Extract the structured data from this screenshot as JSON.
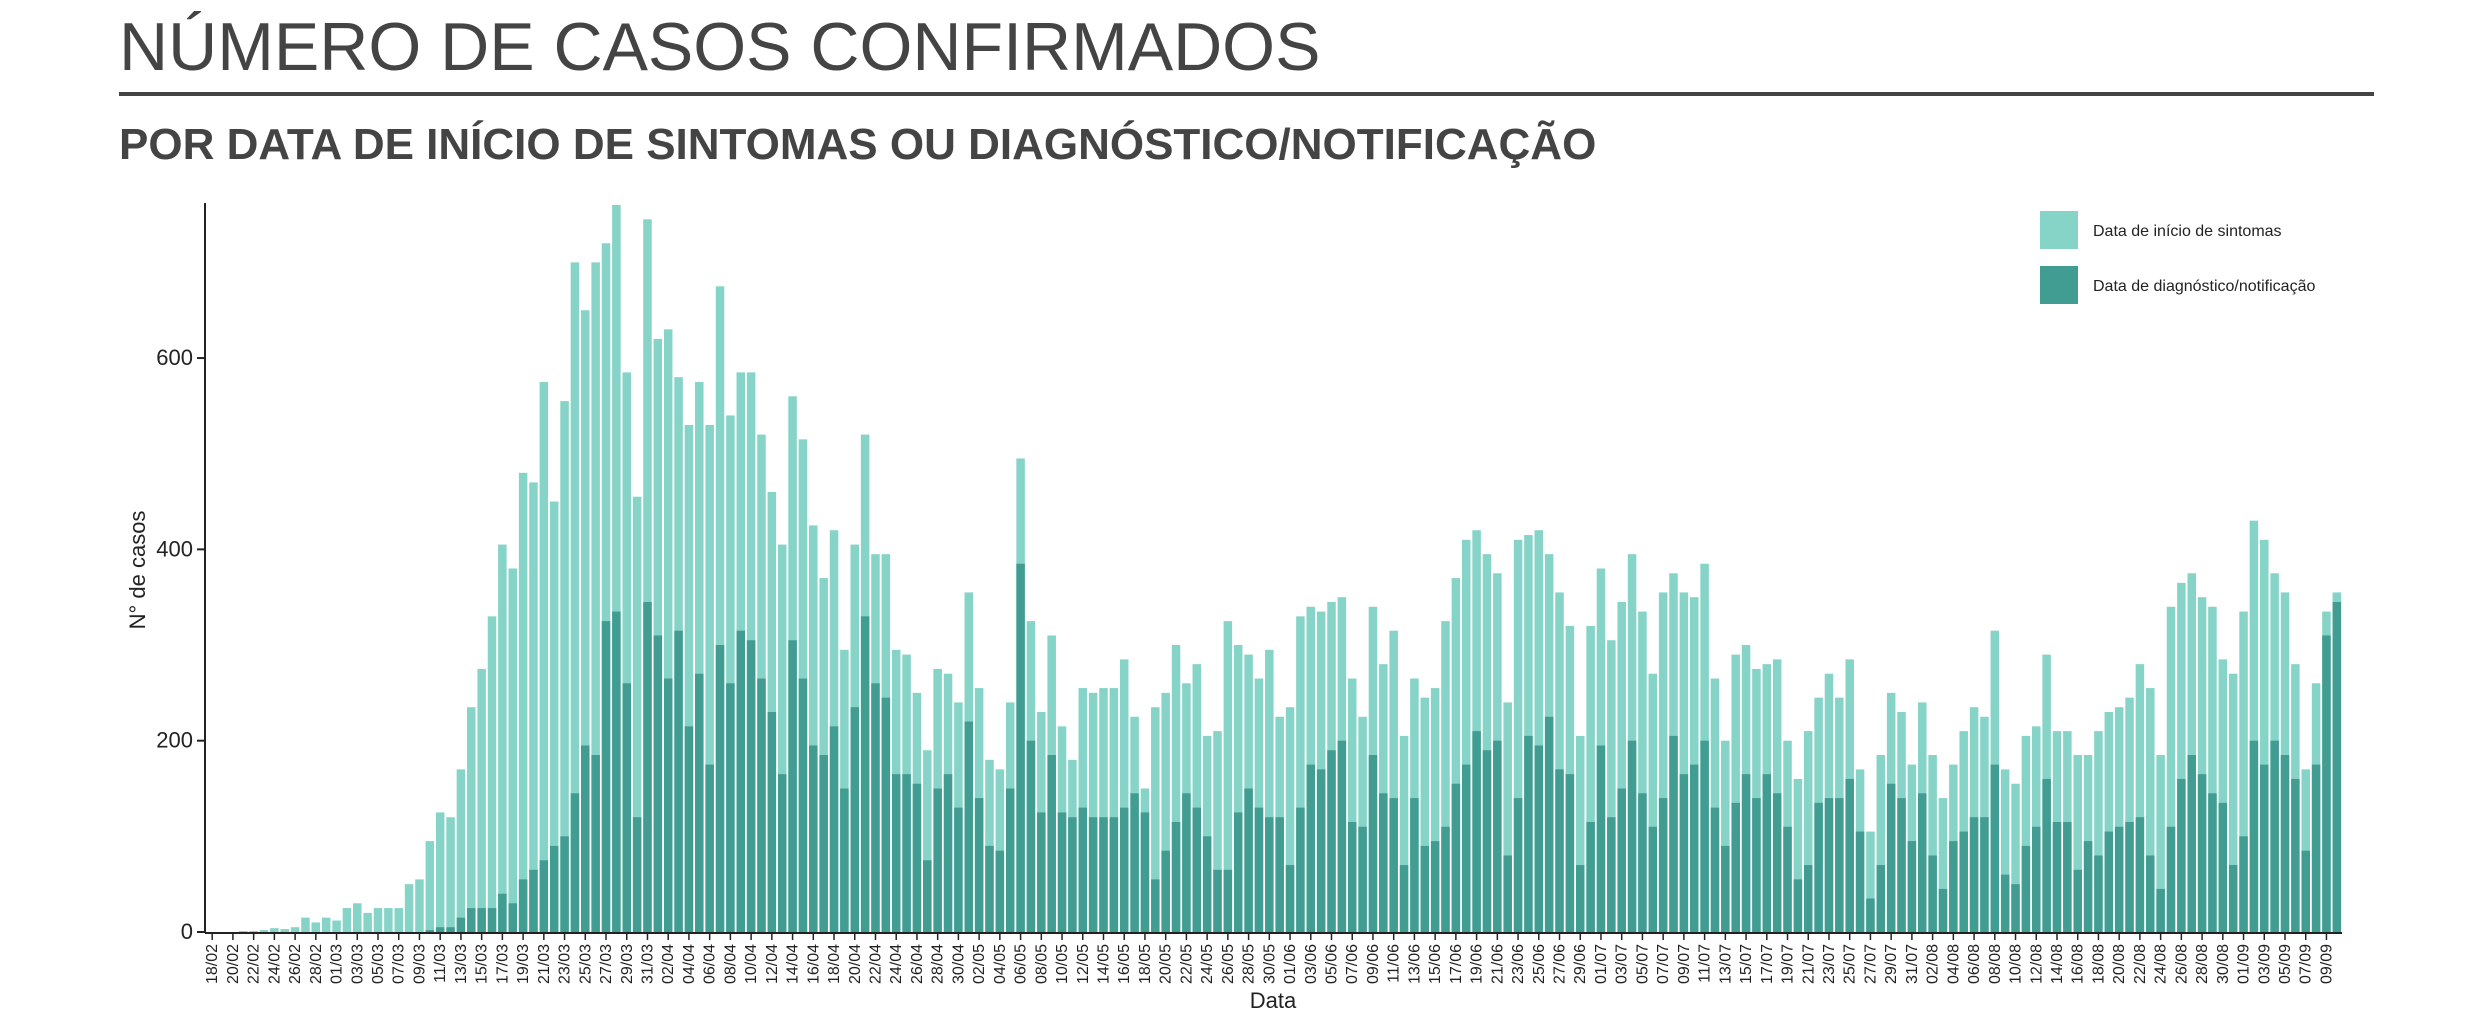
{
  "header": {
    "title": "NÚMERO DE CASOS CONFIRMADOS",
    "subtitle": "POR DATA DE INÍCIO DE SINTOMAS OU DIAGNÓSTICO/NOTIFICAÇÃO"
  },
  "colors": {
    "onset": "#86d3c7",
    "diagnosis": "#419c92",
    "axis": "#222222",
    "text": "#222222"
  },
  "chart_data": {
    "type": "bar",
    "stacking": "overlay",
    "title": "",
    "xlabel": "Data",
    "ylabel": "N° de casos",
    "ylim": [
      0,
      760
    ],
    "yticks": [
      0,
      200,
      400,
      600
    ],
    "grid": false,
    "legend_position": "top-right",
    "start_date": "2020-02-18",
    "end_date": "2020-09-09",
    "xtick_labels": [
      "18/02",
      "20/02",
      "22/02",
      "24/02",
      "26/02",
      "28/02",
      "01/03",
      "03/03",
      "05/03",
      "07/03",
      "09/03",
      "11/03",
      "13/03",
      "15/03",
      "17/03",
      "19/03",
      "21/03",
      "23/03",
      "25/03",
      "27/03",
      "29/03",
      "31/03",
      "02/04",
      "04/04",
      "06/04",
      "08/04",
      "10/04",
      "12/04",
      "14/04",
      "16/04",
      "18/04",
      "20/04",
      "22/04",
      "24/04",
      "26/04",
      "28/04",
      "30/04",
      "02/05",
      "04/05",
      "06/05",
      "08/05",
      "10/05",
      "12/05",
      "14/05",
      "16/05",
      "18/05",
      "20/05",
      "22/05",
      "24/05",
      "26/05",
      "28/05",
      "30/05",
      "01/06",
      "03/06",
      "05/06",
      "07/06",
      "09/06",
      "11/06",
      "13/06",
      "15/06",
      "17/06",
      "19/06",
      "21/06",
      "23/06",
      "25/06",
      "27/06",
      "29/06",
      "01/07",
      "03/07",
      "05/07",
      "07/07",
      "09/07",
      "11/07",
      "13/07",
      "15/07",
      "17/07",
      "19/07",
      "21/07",
      "23/07",
      "25/07",
      "27/07",
      "29/07",
      "31/07",
      "02/08",
      "04/08",
      "06/08",
      "08/08",
      "10/08",
      "12/08",
      "14/08",
      "16/08",
      "18/08",
      "20/08",
      "22/08",
      "24/08",
      "26/08",
      "28/08",
      "30/08",
      "01/09",
      "03/09",
      "05/09",
      "07/09",
      "09/09"
    ],
    "series": [
      {
        "name": "Data de início de sintomas",
        "values": [
          0,
          0,
          0,
          1,
          1,
          2,
          4,
          3,
          5,
          15,
          10,
          15,
          12,
          25,
          30,
          20,
          25,
          25,
          25,
          50,
          55,
          95,
          125,
          120,
          170,
          235,
          275,
          330,
          405,
          380,
          480,
          470,
          575,
          450,
          555,
          700,
          650,
          700,
          720,
          760,
          585,
          455,
          745,
          620,
          630,
          580,
          530,
          575,
          530,
          675,
          540,
          585,
          585,
          520,
          460,
          405,
          560,
          515,
          425,
          370,
          420,
          295,
          405,
          520,
          395,
          395,
          295,
          290,
          250,
          190,
          275,
          270,
          240,
          355,
          255,
          180,
          170,
          240,
          495,
          325,
          230,
          310,
          215,
          180,
          255,
          250,
          255,
          255,
          285,
          225,
          150,
          235,
          250,
          300,
          260,
          280,
          205,
          210,
          325,
          300,
          290,
          265,
          295,
          225,
          235,
          330,
          340,
          335,
          345,
          350,
          265,
          225,
          340,
          280,
          315,
          205,
          265,
          245,
          255,
          325,
          370,
          410,
          420,
          395,
          375,
          240,
          410,
          415,
          420,
          395,
          355,
          320,
          205,
          320,
          380,
          305,
          345,
          395,
          335,
          270,
          355,
          375,
          355,
          350,
          385,
          265,
          200,
          290,
          300,
          275,
          280,
          285,
          200,
          160,
          210,
          245,
          270,
          245,
          285,
          170,
          105,
          185,
          250,
          230,
          175,
          240,
          185,
          140,
          175,
          210,
          235,
          225,
          315,
          170,
          155,
          205,
          215,
          290,
          210,
          210,
          185,
          185,
          210,
          230,
          235,
          245,
          280,
          255,
          185,
          340,
          365,
          375,
          350,
          340,
          285,
          270,
          335,
          430,
          410,
          375,
          355,
          280,
          170,
          260,
          335,
          355
        ]
      },
      {
        "name": "Data de diagnóstico/notificação",
        "values": [
          0,
          0,
          0,
          0,
          0,
          0,
          0,
          0,
          0,
          0,
          0,
          0,
          0,
          0,
          0,
          0,
          0,
          0,
          0,
          0,
          0,
          2,
          5,
          5,
          15,
          25,
          25,
          25,
          40,
          30,
          55,
          65,
          75,
          90,
          100,
          145,
          195,
          185,
          325,
          335,
          260,
          120,
          345,
          310,
          265,
          315,
          215,
          270,
          175,
          300,
          260,
          315,
          305,
          265,
          230,
          165,
          305,
          265,
          195,
          185,
          215,
          150,
          235,
          330,
          260,
          245,
          165,
          165,
          155,
          75,
          150,
          165,
          130,
          220,
          140,
          90,
          85,
          150,
          385,
          200,
          125,
          185,
          125,
          120,
          130,
          120,
          120,
          120,
          130,
          145,
          125,
          55,
          85,
          115,
          145,
          130,
          100,
          65,
          65,
          125,
          150,
          130,
          120,
          120,
          70,
          130,
          175,
          170,
          190,
          200,
          115,
          110,
          185,
          145,
          140,
          70,
          140,
          90,
          95,
          110,
          155,
          175,
          210,
          190,
          200,
          80,
          140,
          205,
          195,
          225,
          170,
          165,
          70,
          115,
          195,
          120,
          150,
          200,
          145,
          110,
          140,
          205,
          165,
          175,
          200,
          130,
          90,
          135,
          165,
          140,
          165,
          145,
          110,
          55,
          70,
          135,
          140,
          140,
          160,
          105,
          35,
          70,
          155,
          140,
          95,
          145,
          80,
          45,
          95,
          105,
          120,
          120,
          175,
          60,
          50,
          90,
          110,
          160,
          115,
          115,
          65,
          95,
          80,
          105,
          110,
          115,
          120,
          80,
          45,
          110,
          160,
          185,
          165,
          145,
          135,
          70,
          100,
          200,
          175,
          200,
          185,
          160,
          85,
          175,
          310,
          345
        ]
      }
    ]
  }
}
